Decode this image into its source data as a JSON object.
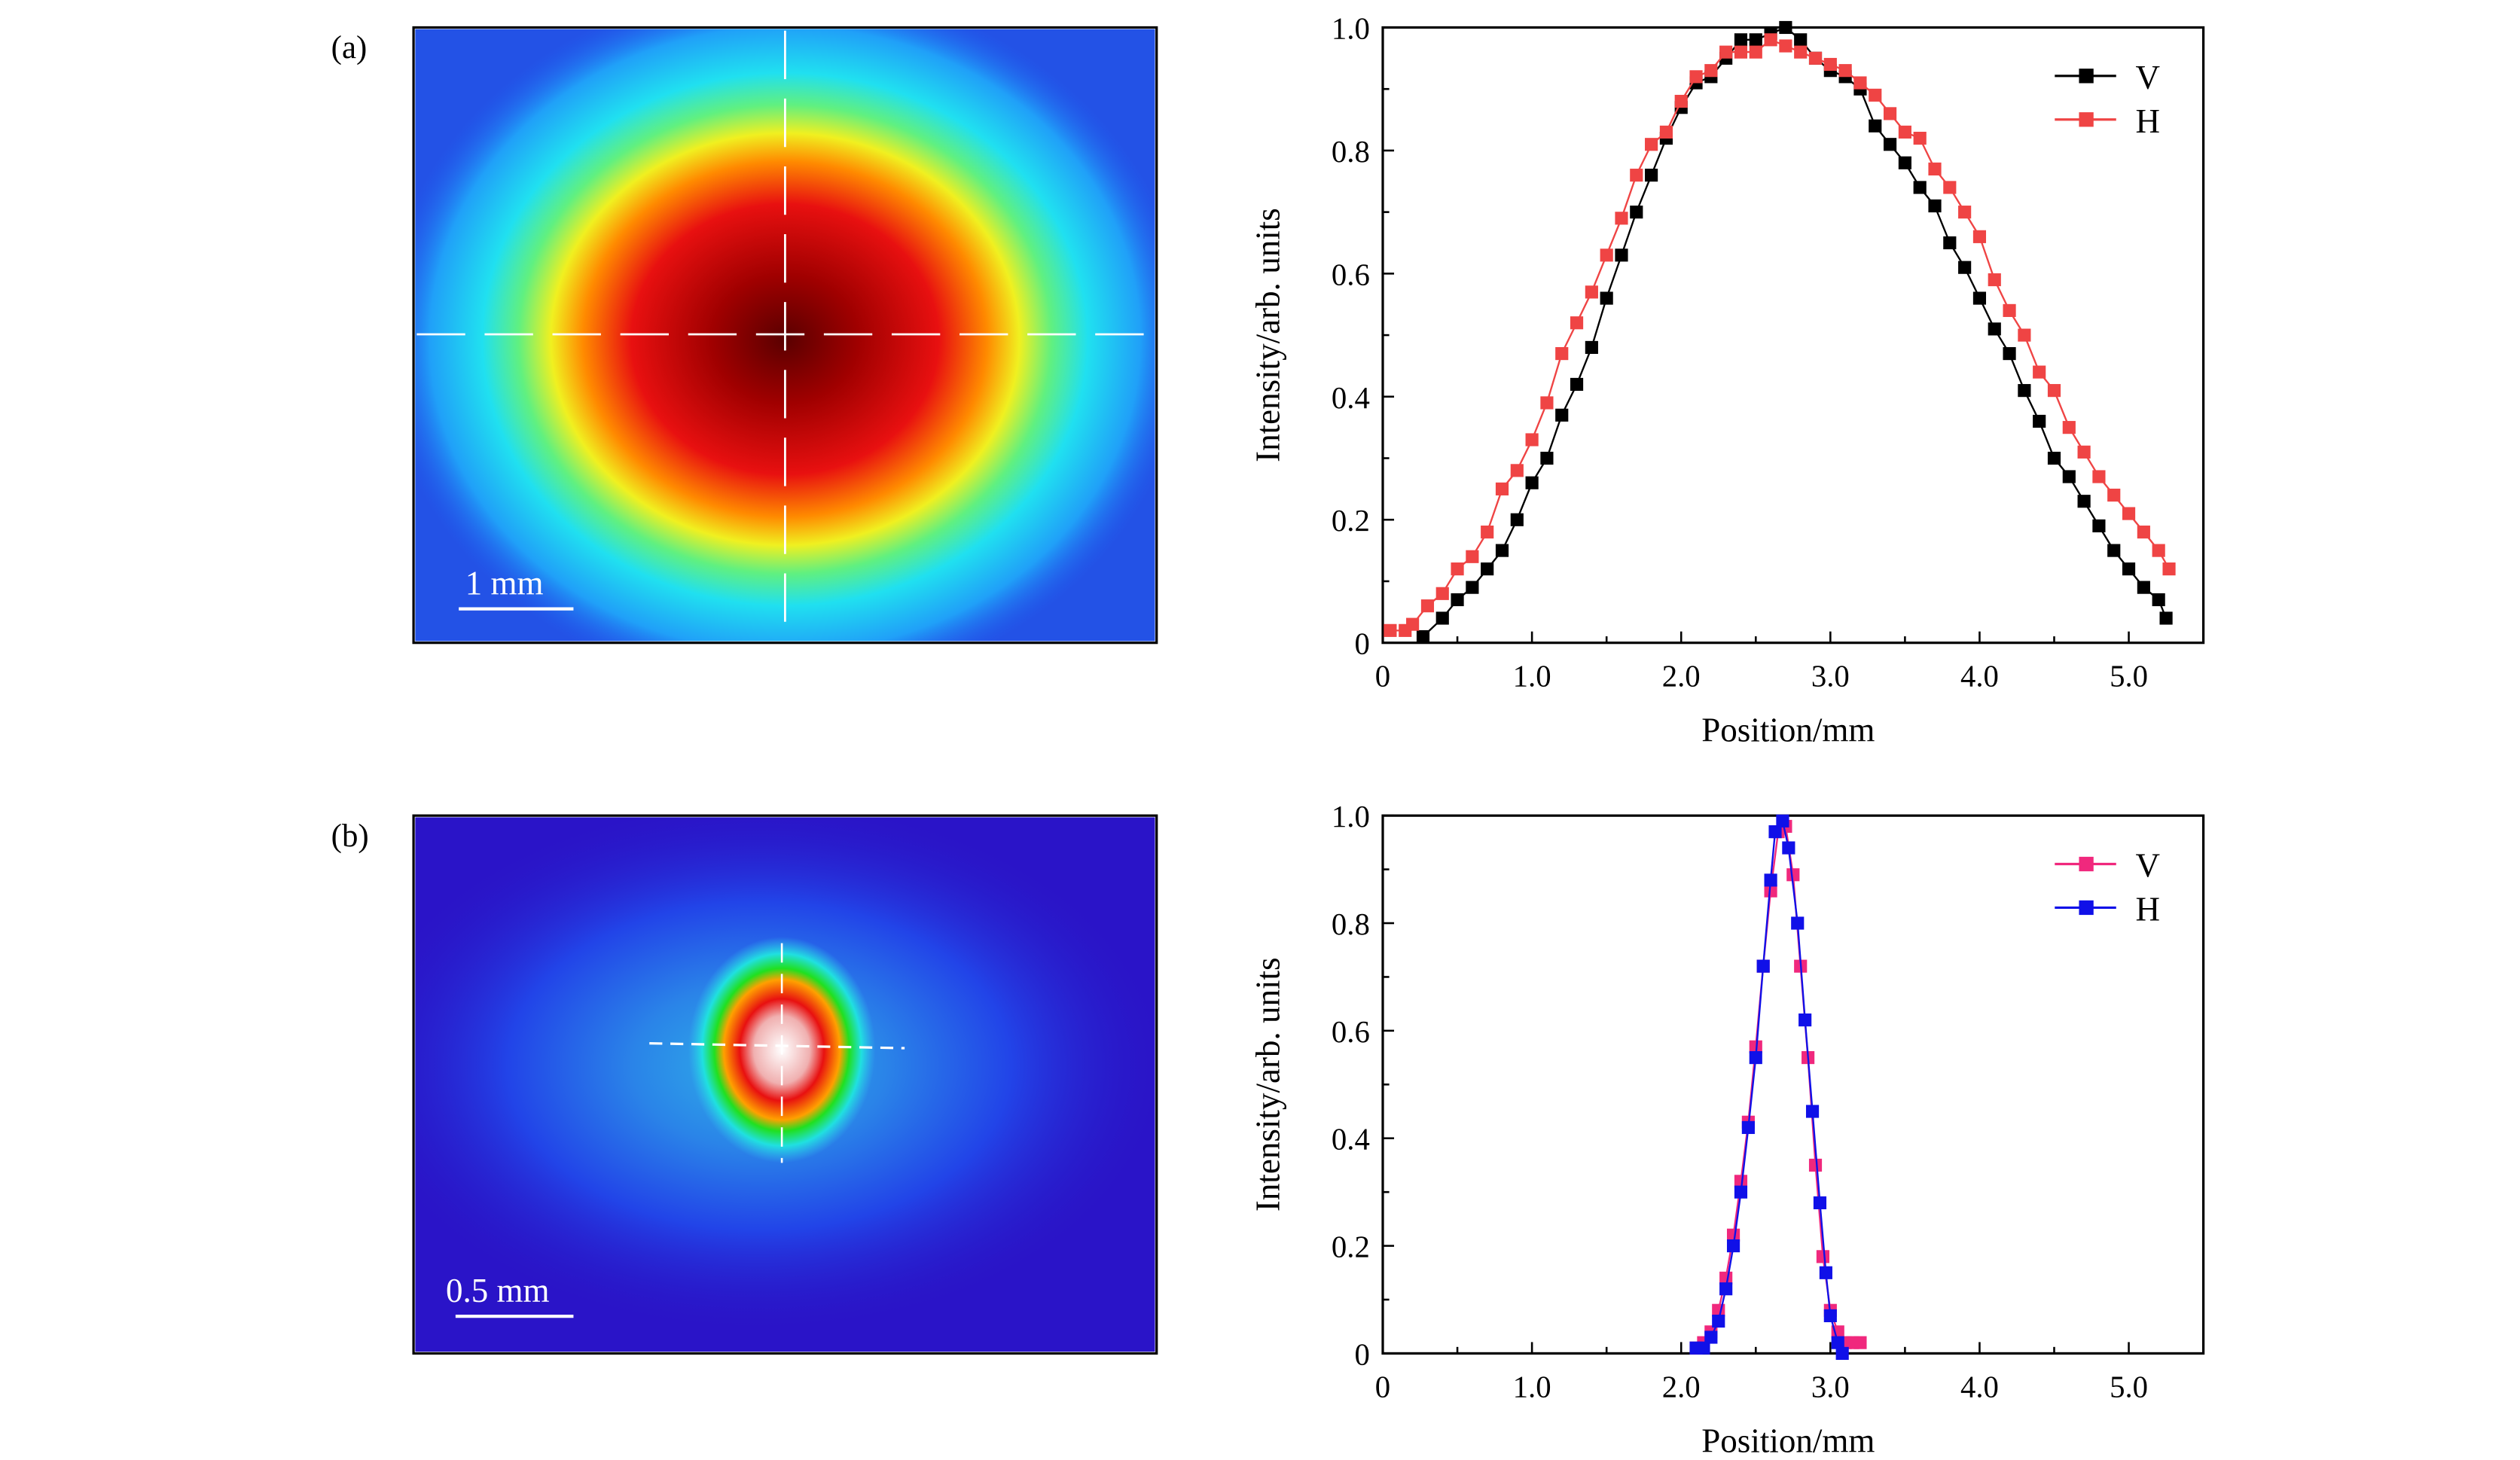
{
  "panels": [
    {
      "label": "(a)",
      "scale_bar": "1 mm"
    },
    {
      "label": "(b)",
      "scale_bar": "0.5 mm"
    }
  ],
  "colors": {
    "a_V": "#000000",
    "a_H": "#ef4444",
    "b_V": "#f0287d",
    "b_H": "#1010e8"
  },
  "chart_data": [
    {
      "type": "line",
      "xlabel": "Position/mm",
      "ylabel": "Intensity/arb. units",
      "xlim": [
        0,
        5.5
      ],
      "ylim": [
        0,
        1.0
      ],
      "xticks": [
        "0",
        "1.0",
        "2.0",
        "3.0",
        "4.0",
        "5.0"
      ],
      "yticks": [
        "0",
        "0.2",
        "0.4",
        "0.6",
        "0.8",
        "1.0"
      ],
      "legend": "top-right",
      "grid": false,
      "series": [
        {
          "name": "V",
          "color": "#000000",
          "x": [
            0.27,
            0.4,
            0.5,
            0.6,
            0.7,
            0.8,
            0.9,
            1.0,
            1.1,
            1.2,
            1.3,
            1.4,
            1.5,
            1.6,
            1.7,
            1.8,
            1.9,
            2.0,
            2.1,
            2.2,
            2.3,
            2.4,
            2.5,
            2.6,
            2.7,
            2.8,
            2.9,
            3.0,
            3.1,
            3.2,
            3.3,
            3.4,
            3.5,
            3.6,
            3.7,
            3.8,
            3.9,
            4.0,
            4.1,
            4.2,
            4.3,
            4.4,
            4.5,
            4.6,
            4.7,
            4.8,
            4.9,
            5.0,
            5.1,
            5.2,
            5.25
          ],
          "y": [
            0.01,
            0.04,
            0.07,
            0.09,
            0.12,
            0.15,
            0.2,
            0.26,
            0.3,
            0.37,
            0.42,
            0.48,
            0.56,
            0.63,
            0.7,
            0.76,
            0.82,
            0.87,
            0.91,
            0.92,
            0.95,
            0.98,
            0.98,
            0.99,
            1.0,
            0.98,
            0.95,
            0.93,
            0.92,
            0.9,
            0.84,
            0.81,
            0.78,
            0.74,
            0.71,
            0.65,
            0.61,
            0.56,
            0.51,
            0.47,
            0.41,
            0.36,
            0.3,
            0.27,
            0.23,
            0.19,
            0.15,
            0.12,
            0.09,
            0.07,
            0.04
          ]
        },
        {
          "name": "H",
          "color": "#ef4444",
          "x": [
            0.05,
            0.15,
            0.2,
            0.3,
            0.4,
            0.5,
            0.6,
            0.7,
            0.8,
            0.9,
            1.0,
            1.1,
            1.2,
            1.3,
            1.4,
            1.5,
            1.6,
            1.7,
            1.8,
            1.9,
            2.0,
            2.1,
            2.2,
            2.3,
            2.4,
            2.5,
            2.6,
            2.7,
            2.8,
            2.9,
            3.0,
            3.1,
            3.2,
            3.3,
            3.4,
            3.5,
            3.6,
            3.7,
            3.8,
            3.9,
            4.0,
            4.1,
            4.2,
            4.3,
            4.4,
            4.5,
            4.6,
            4.7,
            4.8,
            4.9,
            5.0,
            5.1,
            5.2,
            5.27
          ],
          "y": [
            0.02,
            0.02,
            0.03,
            0.06,
            0.08,
            0.12,
            0.14,
            0.18,
            0.25,
            0.28,
            0.33,
            0.39,
            0.47,
            0.52,
            0.57,
            0.63,
            0.69,
            0.76,
            0.81,
            0.83,
            0.88,
            0.92,
            0.93,
            0.96,
            0.96,
            0.96,
            0.98,
            0.97,
            0.96,
            0.95,
            0.94,
            0.93,
            0.91,
            0.89,
            0.86,
            0.83,
            0.82,
            0.77,
            0.74,
            0.7,
            0.66,
            0.59,
            0.54,
            0.5,
            0.44,
            0.41,
            0.35,
            0.31,
            0.27,
            0.24,
            0.21,
            0.18,
            0.15,
            0.12
          ]
        }
      ]
    },
    {
      "type": "line",
      "xlabel": "Position/mm",
      "ylabel": "Intensity/arb. units",
      "xlim": [
        0,
        5.5
      ],
      "ylim": [
        0,
        1.0
      ],
      "xticks": [
        "0",
        "1.0",
        "2.0",
        "3.0",
        "4.0",
        "5.0"
      ],
      "yticks": [
        "0",
        "0.2",
        "0.4",
        "0.6",
        "0.8",
        "1.0"
      ],
      "legend": "top-right",
      "grid": false,
      "series": [
        {
          "name": "V",
          "color": "#f0287d",
          "x": [
            2.1,
            2.15,
            2.2,
            2.25,
            2.3,
            2.35,
            2.4,
            2.45,
            2.5,
            2.55,
            2.6,
            2.65,
            2.7,
            2.75,
            2.8,
            2.85,
            2.9,
            2.95,
            3.0,
            3.05,
            3.1,
            3.15,
            3.2
          ],
          "y": [
            0.01,
            0.02,
            0.04,
            0.08,
            0.14,
            0.22,
            0.32,
            0.43,
            0.57,
            0.72,
            0.86,
            0.97,
            0.98,
            0.89,
            0.72,
            0.55,
            0.35,
            0.18,
            0.08,
            0.04,
            0.02,
            0.02,
            0.02
          ]
        },
        {
          "name": "H",
          "color": "#1010e8",
          "x": [
            2.1,
            2.15,
            2.2,
            2.25,
            2.3,
            2.35,
            2.4,
            2.45,
            2.5,
            2.55,
            2.6,
            2.63,
            2.68,
            2.72,
            2.78,
            2.83,
            2.88,
            2.93,
            2.97,
            3.0,
            3.05,
            3.08
          ],
          "y": [
            0.01,
            0.01,
            0.03,
            0.06,
            0.12,
            0.2,
            0.3,
            0.42,
            0.55,
            0.72,
            0.88,
            0.97,
            0.99,
            0.94,
            0.8,
            0.62,
            0.45,
            0.28,
            0.15,
            0.07,
            0.02,
            0.0
          ]
        }
      ]
    }
  ]
}
